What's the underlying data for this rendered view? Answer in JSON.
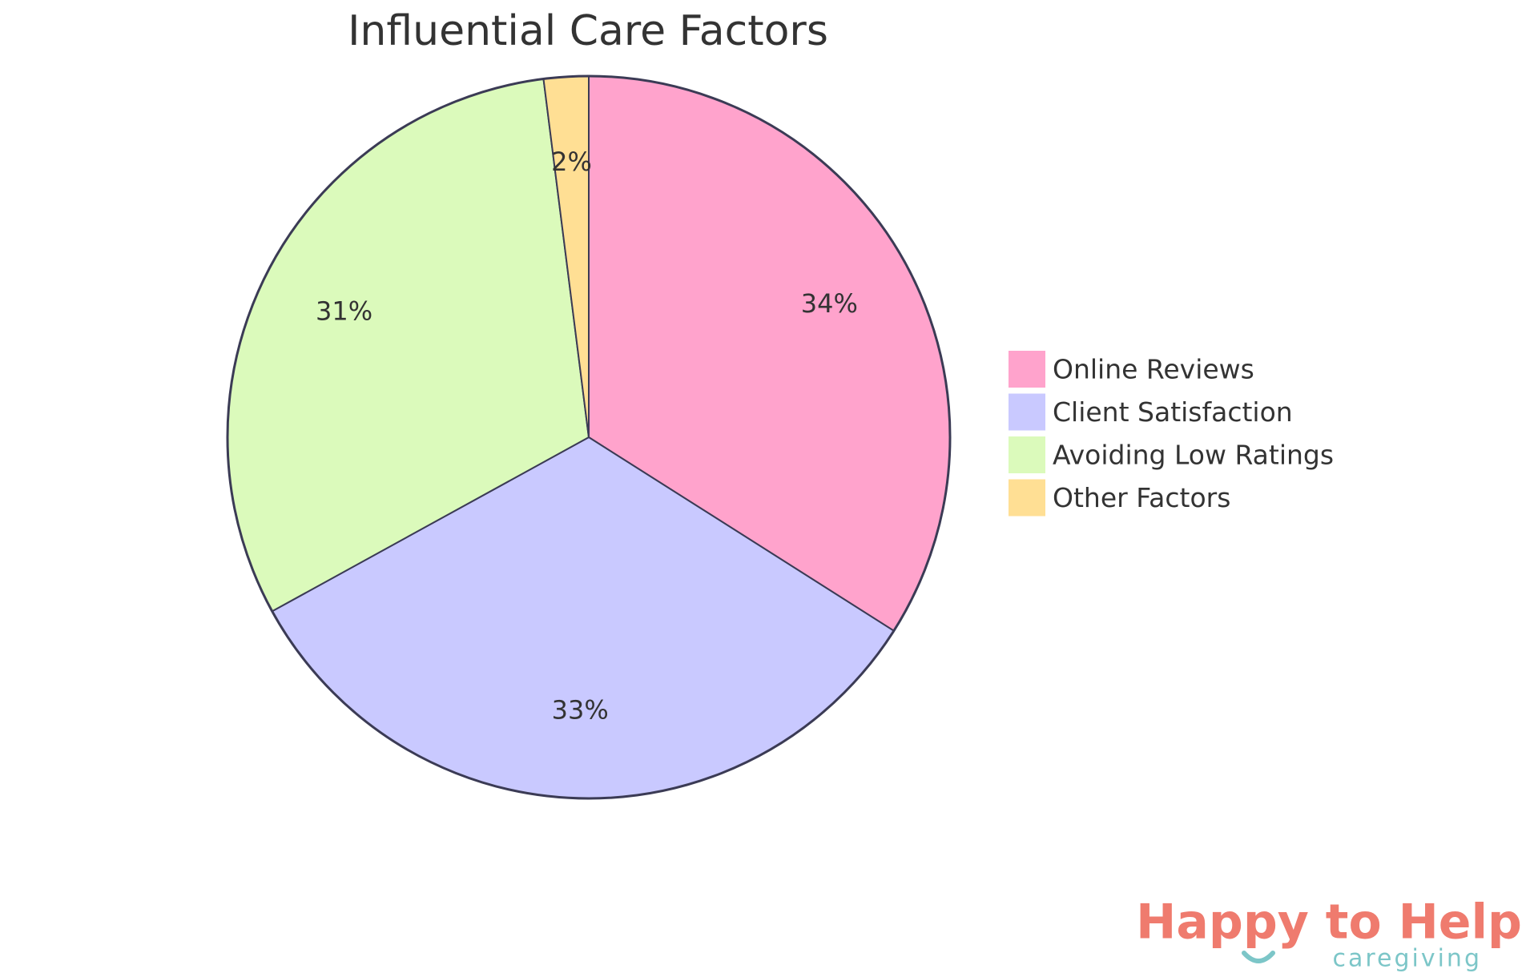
{
  "chart_data": {
    "type": "pie",
    "title": "Influential Care Factors",
    "categories": [
      "Online Reviews",
      "Client Satisfaction",
      "Avoiding Low Ratings",
      "Other Factors"
    ],
    "values": [
      34,
      33,
      31,
      2
    ],
    "value_labels": [
      "34%",
      "33%",
      "31%",
      "2%"
    ],
    "colors": [
      "#ffa3cc",
      "#c9c9ff",
      "#dbfabb",
      "#ffdf94"
    ],
    "legend": "right"
  },
  "logo": {
    "name": "Happy to Help",
    "tagline": "caregiving"
  }
}
